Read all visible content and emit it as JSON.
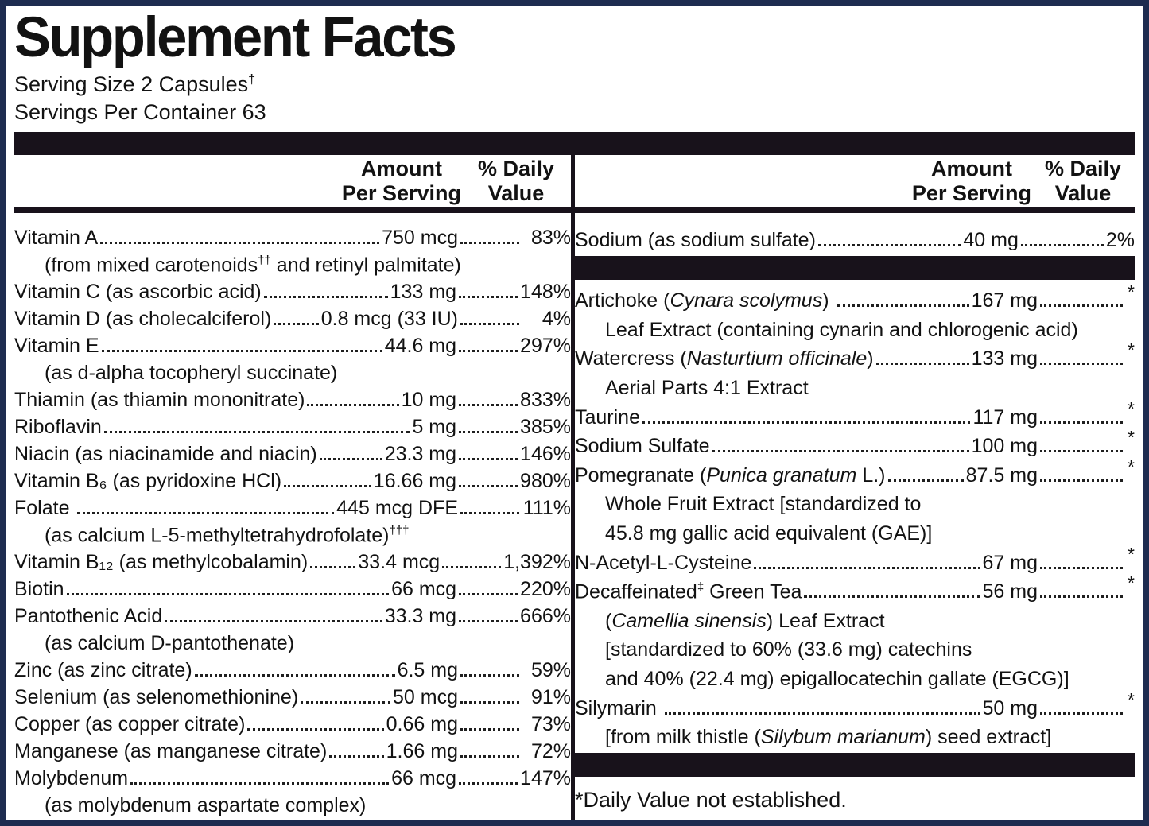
{
  "title": "Supplement Facts",
  "serving": {
    "size": "Serving Size 2 Capsules",
    "size_sup": "†",
    "per_container": "Servings Per Container 63"
  },
  "columns": {
    "amount_line1": "Amount",
    "amount_line2": "Per Serving",
    "dv_line1": "% Daily",
    "dv_line2": "Value"
  },
  "left_rows": [
    {
      "pre": "Vitamin A",
      "amount": "750 mcg",
      "dv": "83%"
    },
    {
      "pre": "(from mixed carotenoids",
      "sup": "††",
      "post": " and retinyl palmitate)"
    },
    {
      "pre": "Vitamin C (as ascorbic acid)",
      "amount": "133 mg",
      "dv": "148%"
    },
    {
      "pre": "Vitamin D (as cholecalciferol)",
      "amount": "0.8 mcg (33 IU)",
      "dv": "4%"
    },
    {
      "pre": "Vitamin E",
      "amount": "44.6 mg",
      "dv": "297%"
    },
    {
      "pre": "(as d-alpha tocopheryl succinate)"
    },
    {
      "pre": "Thiamin (as thiamin mononitrate)",
      "amount": "10 mg",
      "dv": "833%"
    },
    {
      "pre": "Riboflavin",
      "amount": "5 mg",
      "dv": "385%"
    },
    {
      "pre": "Niacin (as niacinamide and niacin)",
      "amount": "23.3 mg",
      "dv": "146%"
    },
    {
      "pre": "Vitamin B₆ (as pyridoxine HCl)",
      "amount": "16.66 mg",
      "dv": "980%"
    },
    {
      "pre": "Folate ",
      "amount": "445 mcg DFE",
      "dv": "111%"
    },
    {
      "pre": "(as calcium L-5-methyltetrahydrofolate)",
      "sup": "†††"
    },
    {
      "pre": "Vitamin B₁₂ (as methylcobalamin)",
      "amount": "33.4 mcg",
      "dv": "1,392%"
    },
    {
      "pre": "Biotin",
      "amount": "66 mcg",
      "dv": "220%"
    },
    {
      "pre": "Pantothenic Acid",
      "amount": "33.3 mg",
      "dv": "666%"
    },
    {
      "pre": "(as calcium D-pantothenate)"
    },
    {
      "pre": "Zinc (as zinc citrate)",
      "amount": "6.5 mg",
      "dv": "59%"
    },
    {
      "pre": "Selenium (as selenomethionine)",
      "amount": "50 mcg",
      "dv": "91%"
    },
    {
      "pre": "Copper (as copper citrate)",
      "amount": "0.66 mg",
      "dv": "73%"
    },
    {
      "pre": "Manganese (as manganese citrate)",
      "amount": "1.66 mg",
      "dv": "72%"
    },
    {
      "pre": "Molybdenum",
      "amount": "66 mcg",
      "dv": "147%"
    },
    {
      "pre": "(as molybdenum aspartate complex)"
    }
  ],
  "right_rows": [
    {
      "pre": "Sodium (as sodium sulfate)",
      "amount": "40 mg",
      "dv": "2%"
    },
    {
      "pre": "Artichoke (",
      "i": "Cynara scolymus",
      "mid": ") ",
      "amount": "167 mg",
      "dv": "*"
    },
    {
      "pre": "Leaf Extract (containing cynarin and chlorogenic acid)"
    },
    {
      "pre": "Watercress (",
      "i": "Nasturtium officinale",
      "mid": ")",
      "amount": "133 mg",
      "dv": "*"
    },
    {
      "pre": "Aerial Parts 4:1 Extract"
    },
    {
      "pre": "Taurine",
      "amount": "117 mg",
      "dv": "*"
    },
    {
      "pre": "Sodium Sulfate",
      "amount": "100 mg",
      "dv": "*"
    },
    {
      "pre": "Pomegranate (",
      "i": "Punica granatum",
      "mid": " L.)",
      "amount": "87.5 mg",
      "dv": "*"
    },
    {
      "pre": "Whole Fruit Extract [standardized to"
    },
    {
      "pre": "45.8 mg gallic acid equivalent (GAE)]"
    },
    {
      "pre": "N-Acetyl-L-Cysteine",
      "amount": "67 mg",
      "dv": "*"
    },
    {
      "pre": "Decaffeinated",
      "sup": "‡",
      "post": " Green Tea",
      "amount": "56 mg",
      "dv": "*"
    },
    {
      "pre": "(",
      "i": "Camellia sinensis",
      "mid": ") Leaf Extract"
    },
    {
      "pre": "[standardized to 60% (33.6 mg) catechins"
    },
    {
      "pre": "and 40% (22.4 mg) epigallocatechin gallate (EGCG)]"
    },
    {
      "pre": "Silymarin ",
      "amount": "50 mg",
      "dv": "*"
    },
    {
      "pre": "[from milk thistle (",
      "i": "Silybum marianum",
      "mid": ") seed extract]"
    }
  ],
  "footnote": "*Daily Value not established.",
  "colors": {
    "frame": "#1e2c50",
    "bar": "#18121b",
    "text": "#121212",
    "dots": "#1f1f1f"
  }
}
